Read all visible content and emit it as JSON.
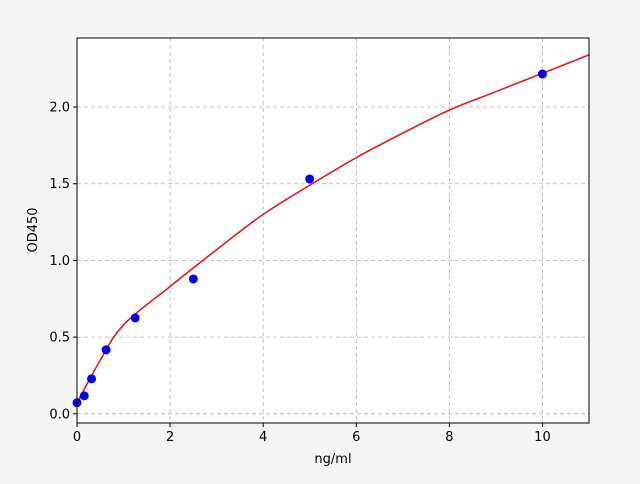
{
  "chart_data": {
    "type": "scatter",
    "title": "",
    "xlabel": "ng/ml",
    "ylabel": "OD450",
    "xlim": [
      0,
      11
    ],
    "ylim": [
      -0.06,
      2.45
    ],
    "xticks": [
      0,
      2,
      4,
      6,
      8,
      10
    ],
    "xtick_labels": [
      "0",
      "2",
      "4",
      "6",
      "8",
      "10"
    ],
    "yticks": [
      0.0,
      0.5,
      1.0,
      1.5,
      2.0
    ],
    "ytick_labels": [
      "0.0",
      "0.5",
      "1.0",
      "1.5",
      "2.0"
    ],
    "grid": true,
    "points": {
      "color": "#0000ee",
      "x": [
        0,
        0.156,
        0.3125,
        0.625,
        1.25,
        2.5,
        5,
        10
      ],
      "y": [
        0.072,
        0.117,
        0.228,
        0.417,
        0.625,
        0.879,
        1.531,
        2.215
      ]
    },
    "fit_curve": {
      "color": "#e31a1c",
      "x": [
        0,
        0.5,
        1,
        2,
        3,
        4,
        5,
        6,
        7,
        8,
        9,
        10,
        11
      ],
      "y": [
        0.07,
        0.35,
        0.58,
        0.83,
        1.07,
        1.3,
        1.49,
        1.67,
        1.83,
        1.98,
        2.1,
        2.22,
        2.34
      ]
    }
  }
}
